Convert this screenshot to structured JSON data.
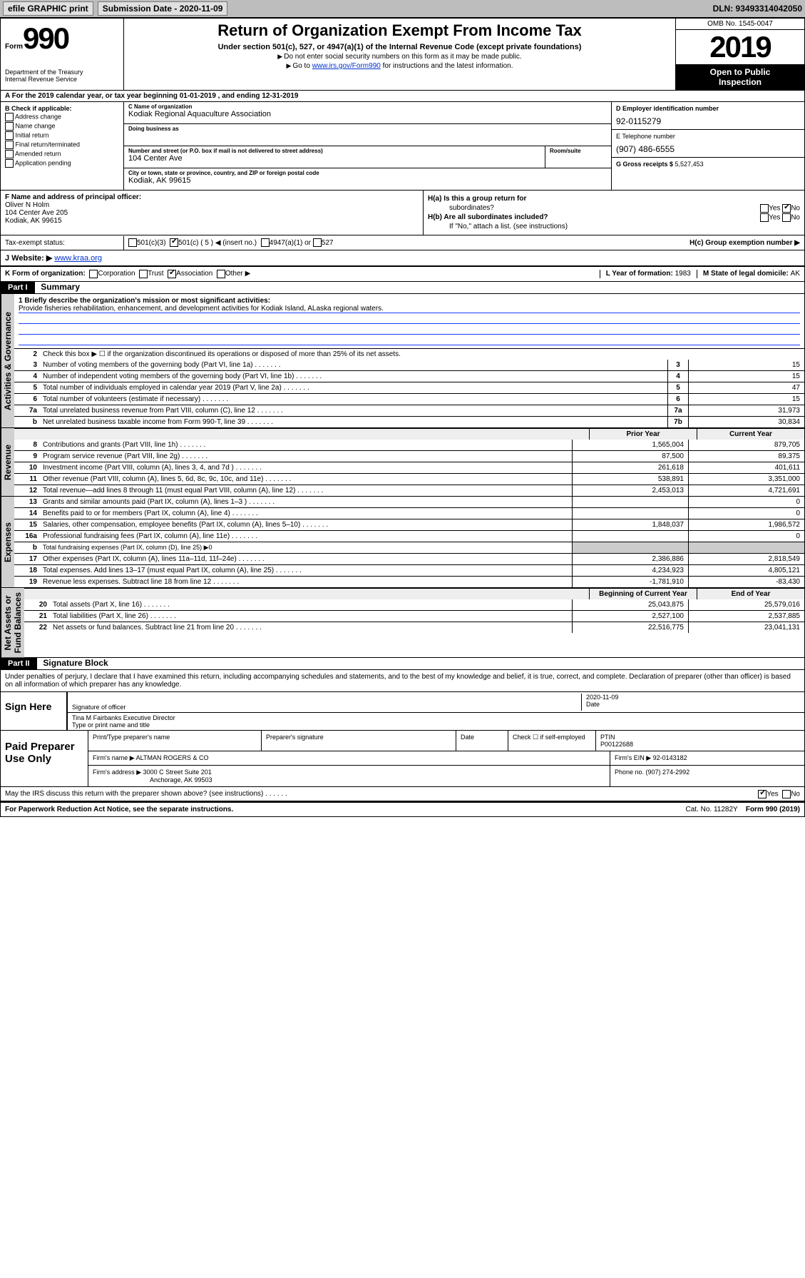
{
  "topbar": {
    "efile": "efile GRAPHIC print",
    "sub_label": "Submission Date - 2020-11-09",
    "dln": "DLN: 93493314042050"
  },
  "hdr": {
    "form_prefix": "Form",
    "form_num": "990",
    "dept": "Department of the Treasury\nInternal Revenue Service",
    "title": "Return of Organization Exempt From Income Tax",
    "sub1": "Under section 501(c), 527, or 4947(a)(1) of the Internal Revenue Code (except private foundations)",
    "sub2a": "Do not enter social security numbers on this form as it may be made public.",
    "sub2b_pre": "Go to ",
    "sub2b_link": "www.irs.gov/Form990",
    "sub2b_post": " for instructions and the latest information.",
    "omb": "OMB No. 1545-0047",
    "year": "2019",
    "open1": "Open to Public",
    "open2": "Inspection"
  },
  "rowA": "A For the 2019 calendar year, or tax year beginning 01-01-2019    , and ending 12-31-2019",
  "colB": {
    "hdr": "B Check if applicable:",
    "items": [
      "Address change",
      "Name change",
      "Initial return",
      "Final return/terminated",
      "Amended return",
      "Application pending"
    ]
  },
  "colC": {
    "name_lbl": "C Name of organization",
    "name": "Kodiak Regional Aquaculture Association",
    "dba_lbl": "Doing business as",
    "dba": "",
    "addr_lbl": "Number and street (or P.O. box if mail is not delivered to street address)",
    "room_lbl": "Room/suite",
    "addr": "104 Center Ave",
    "city_lbl": "City or town, state or province, country, and ZIP or foreign postal code",
    "city": "Kodiak, AK  99615"
  },
  "colD": {
    "ein_lbl": "D Employer identification number",
    "ein": "92-0115279",
    "tel_lbl": "E Telephone number",
    "tel": "(907) 486-6555",
    "gross_lbl": "G Gross receipts $ ",
    "gross": "5,527,453"
  },
  "secF": {
    "lbl": "F  Name and address of principal officer:",
    "name": "Oliver N Holm",
    "a1": "104 Center Ave 205",
    "a2": "Kodiak, AK  99615"
  },
  "secH": {
    "ha": "H(a)  Is this a group return for",
    "ha2": "subordinates?",
    "hb": "H(b)  Are all subordinates included?",
    "hb2": "If \"No,\" attach a list. (see instructions)",
    "hc": "H(c)  Group exemption number ▶"
  },
  "taxex": {
    "lbl": "Tax-exempt status:",
    "o1": "501(c)(3)",
    "o2": "501(c) ( 5 ) ◀ (insert no.)",
    "o3": "4947(a)(1) or",
    "o4": "527"
  },
  "web": {
    "lbl": "J    Website: ▶ ",
    "url": "www.kraa.org"
  },
  "krow": {
    "k": "K Form of organization:",
    "k_opts": [
      "Corporation",
      "Trust",
      "Association",
      "Other ▶"
    ],
    "l_lbl": "L Year of formation: ",
    "l": "1983",
    "m_lbl": "M State of legal domicile: ",
    "m": "AK"
  },
  "part1": {
    "num": "Part I",
    "title": "Summary"
  },
  "mission": {
    "lbl": "1  Briefly describe the organization's mission or most significant activities:",
    "txt": "Provide fisheries rehabilitation, enhancement, and development activities for Kodiak Island, ALaska regional waters."
  },
  "summary": {
    "l2": "Check this box ▶ ☐  if the organization discontinued its operations or disposed of more than 25% of its net assets.",
    "rows_a": [
      {
        "n": "3",
        "t": "Number of voting members of the governing body (Part VI, line 1a)",
        "c": "3",
        "v": "15"
      },
      {
        "n": "4",
        "t": "Number of independent voting members of the governing body (Part VI, line 1b)",
        "c": "4",
        "v": "15"
      },
      {
        "n": "5",
        "t": "Total number of individuals employed in calendar year 2019 (Part V, line 2a)",
        "c": "5",
        "v": "47"
      },
      {
        "n": "6",
        "t": "Total number of volunteers (estimate if necessary)",
        "c": "6",
        "v": "15"
      },
      {
        "n": "7a",
        "t": "Total unrelated business revenue from Part VIII, column (C), line 12",
        "c": "7a",
        "v": "31,973"
      },
      {
        "n": "b",
        "t": "Net unrelated business taxable income from Form 990-T, line 39",
        "c": "7b",
        "v": "30,834"
      }
    ],
    "hdr_prior": "Prior Year",
    "hdr_curr": "Current Year",
    "rev": [
      {
        "n": "8",
        "t": "Contributions and grants (Part VIII, line 1h)",
        "p": "1,565,004",
        "c": "879,705"
      },
      {
        "n": "9",
        "t": "Program service revenue (Part VIII, line 2g)",
        "p": "87,500",
        "c": "89,375"
      },
      {
        "n": "10",
        "t": "Investment income (Part VIII, column (A), lines 3, 4, and 7d )",
        "p": "261,618",
        "c": "401,611"
      },
      {
        "n": "11",
        "t": "Other revenue (Part VIII, column (A), lines 5, 6d, 8c, 9c, 10c, and 11e)",
        "p": "538,891",
        "c": "3,351,000"
      },
      {
        "n": "12",
        "t": "Total revenue—add lines 8 through 11 (must equal Part VIII, column (A), line 12)",
        "p": "2,453,013",
        "c": "4,721,691"
      }
    ],
    "exp": [
      {
        "n": "13",
        "t": "Grants and similar amounts paid (Part IX, column (A), lines 1–3 )",
        "p": "",
        "c": "0"
      },
      {
        "n": "14",
        "t": "Benefits paid to or for members (Part IX, column (A), line 4)",
        "p": "",
        "c": "0"
      },
      {
        "n": "15",
        "t": "Salaries, other compensation, employee benefits (Part IX, column (A), lines 5–10)",
        "p": "1,848,037",
        "c": "1,986,572"
      },
      {
        "n": "16a",
        "t": "Professional fundraising fees (Part IX, column (A), line 11e)",
        "p": "",
        "c": "0"
      },
      {
        "n": "b",
        "t": "Total fundraising expenses (Part IX, column (D), line 25) ▶0",
        "p": null,
        "c": null
      },
      {
        "n": "17",
        "t": "Other expenses (Part IX, column (A), lines 11a–11d, 11f–24e)",
        "p": "2,386,886",
        "c": "2,818,549"
      },
      {
        "n": "18",
        "t": "Total expenses. Add lines 13–17 (must equal Part IX, column (A), line 25)",
        "p": "4,234,923",
        "c": "4,805,121"
      },
      {
        "n": "19",
        "t": "Revenue less expenses. Subtract line 18 from line 12",
        "p": "-1,781,910",
        "c": "-83,430"
      }
    ],
    "hdr_beg": "Beginning of Current Year",
    "hdr_end": "End of Year",
    "net": [
      {
        "n": "20",
        "t": "Total assets (Part X, line 16)",
        "p": "25,043,875",
        "c": "25,579,016"
      },
      {
        "n": "21",
        "t": "Total liabilities (Part X, line 26)",
        "p": "2,527,100",
        "c": "2,537,885"
      },
      {
        "n": "22",
        "t": "Net assets or fund balances. Subtract line 21 from line 20",
        "p": "22,516,775",
        "c": "23,041,131"
      }
    ]
  },
  "vtabs": {
    "ag": "Activities & Governance",
    "rev": "Revenue",
    "exp": "Expenses",
    "net": "Net Assets or\nFund Balances"
  },
  "part2": {
    "num": "Part II",
    "title": "Signature Block"
  },
  "sig": {
    "decl": "Under penalties of perjury, I declare that I have examined this return, including accompanying schedules and statements, and to the best of my knowledge and belief, it is true, correct, and complete. Declaration of preparer (other than officer) is based on all information of which preparer has any knowledge.",
    "here": "Sign Here",
    "s1_lbl": "Signature of officer",
    "s1_date": "2020-11-09",
    "date_lbl": "Date",
    "s2_val": "Tina M Fairbanks  Executive Director",
    "s2_lbl": "Type or print name and title"
  },
  "prep": {
    "lbl": "Paid Preparer Use Only",
    "h1": "Print/Type preparer's name",
    "h2": "Preparer's signature",
    "h3": "Date",
    "h4": "Check ☐ if self-employed",
    "h5": "PTIN",
    "ptin": "P00122688",
    "fn_lbl": "Firm's name    ▶ ",
    "fn": "ALTMAN ROGERS & CO",
    "fein_lbl": "Firm's EIN ▶ ",
    "fein": "92-0143182",
    "fa_lbl": "Firm's address ▶ ",
    "fa1": "3000 C Street Suite 201",
    "fa2": "Anchorage, AK  99503",
    "ph_lbl": "Phone no. ",
    "ph": "(907) 274-2992"
  },
  "foot": {
    "discuss": "May the IRS discuss this return with the preparer shown above? (see instructions)",
    "pra": "For Paperwork Reduction Act Notice, see the separate instructions.",
    "cat": "Cat. No. 11282Y",
    "form": "Form 990 (2019)"
  },
  "yesno": {
    "yes": "Yes",
    "no": "No"
  }
}
